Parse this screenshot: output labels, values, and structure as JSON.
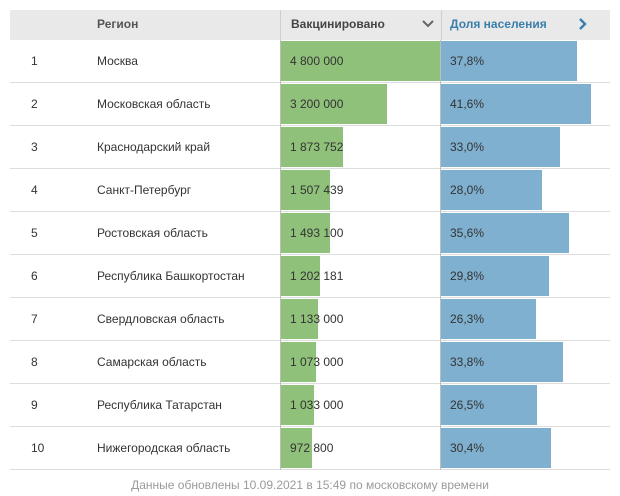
{
  "header": {
    "region": "Регион",
    "vaccinated": "Вакцинировано",
    "share": "Доля населения",
    "sort_icon": "chevron-down-icon",
    "next_icon": "chevron-right-icon"
  },
  "colors": {
    "vaccinated_bar": "#8fc17a",
    "share_bar": "#7fb0cf",
    "header_bg": "#e9e9e9",
    "share_header_text": "#3a7eab"
  },
  "rows": [
    {
      "rank": "1",
      "region": "Москва",
      "vaccinated": "4 800 000",
      "share": "37,8%"
    },
    {
      "rank": "2",
      "region": "Московская область",
      "vaccinated": "3 200 000",
      "share": "41,6%"
    },
    {
      "rank": "3",
      "region": "Краснодарский край",
      "vaccinated": "1 873 752",
      "share": "33,0%"
    },
    {
      "rank": "4",
      "region": "Санкт-Петербург",
      "vaccinated": "1 507 439",
      "share": "28,0%"
    },
    {
      "rank": "5",
      "region": "Ростовская область",
      "vaccinated": "1 493 100",
      "share": "35,6%"
    },
    {
      "rank": "6",
      "region": "Республика Башкортостан",
      "vaccinated": "1 202 181",
      "share": "29,8%"
    },
    {
      "rank": "7",
      "region": "Свердловская область",
      "vaccinated": "1 133 000",
      "share": "26,3%"
    },
    {
      "rank": "8",
      "region": "Самарская область",
      "vaccinated": "1 073 000",
      "share": "33,8%"
    },
    {
      "rank": "9",
      "region": "Республика Татарстан",
      "vaccinated": "1 033 000",
      "share": "26,5%"
    },
    {
      "rank": "10",
      "region": "Нижегородская область",
      "vaccinated": "972 800",
      "share": "30,4%"
    }
  ],
  "chart_data": {
    "type": "table",
    "categories": [
      "Москва",
      "Московская область",
      "Краснодарский край",
      "Санкт-Петербург",
      "Ростовская область",
      "Республика Башкортостан",
      "Свердловская область",
      "Самарская область",
      "Республика Татарстан",
      "Нижегородская область"
    ],
    "series": [
      {
        "name": "Вакцинировано",
        "values": [
          4800000,
          3200000,
          1873752,
          1507439,
          1493100,
          1202181,
          1133000,
          1073000,
          1033000,
          972800
        ]
      },
      {
        "name": "Доля населения",
        "values": [
          37.8,
          41.6,
          33.0,
          28.0,
          35.6,
          29.8,
          26.3,
          33.8,
          26.5,
          30.4
        ]
      }
    ],
    "vaccinated_max": 4800000,
    "share_max": 41.6
  },
  "footer": "Данные обновлены 10.09.2021 в 15:49 по московскому времени"
}
